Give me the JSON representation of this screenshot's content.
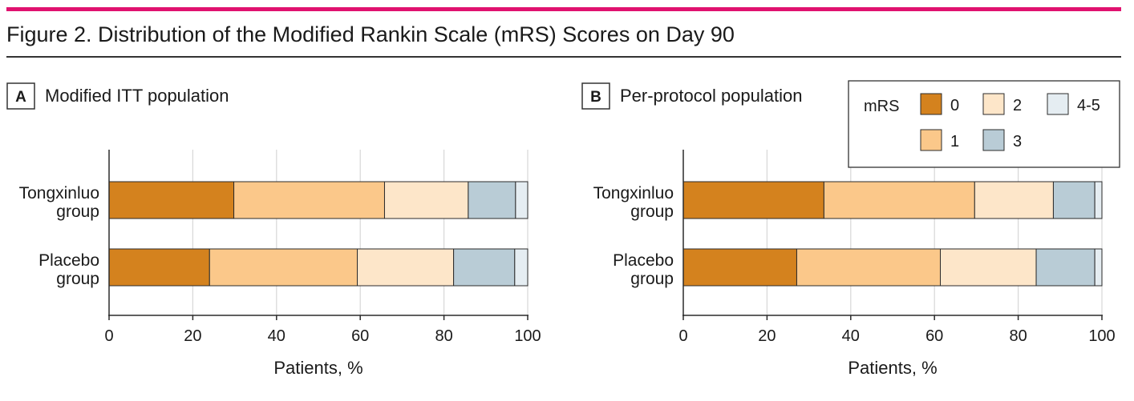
{
  "figure": {
    "title": "Figure 2. Distribution of the Modified Rankin Scale (mRS) Scores on Day 90",
    "accent_color": "#e0126f"
  },
  "legend": {
    "title": "mRS",
    "entries": [
      {
        "label": "0",
        "color": "#d4821e"
      },
      {
        "label": "1",
        "color": "#fbc88a"
      },
      {
        "label": "2",
        "color": "#fde6c9"
      },
      {
        "label": "3",
        "color": "#b9ccd6"
      },
      {
        "label": "4-5",
        "color": "#e5edf2"
      }
    ]
  },
  "chart_data": [
    {
      "type": "bar",
      "orientation": "horizontal",
      "stacked": true,
      "panel": "A",
      "title": "Modified ITT population",
      "categories": [
        [
          "Tongxinluo",
          "group"
        ],
        [
          "Placebo",
          "group"
        ]
      ],
      "series": [
        {
          "name": "0",
          "values": [
            29.8,
            24.0
          ]
        },
        {
          "name": "1",
          "values": [
            36.0,
            35.3
          ]
        },
        {
          "name": "2",
          "values": [
            20.0,
            23.0
          ]
        },
        {
          "name": "3",
          "values": [
            11.3,
            14.6
          ]
        },
        {
          "name": "4-5",
          "values": [
            2.9,
            3.1
          ]
        }
      ],
      "xlabel": "Patients, %",
      "ylabel": "",
      "xlim": [
        0,
        100
      ],
      "xticks": [
        0,
        20,
        40,
        60,
        80,
        100
      ]
    },
    {
      "type": "bar",
      "orientation": "horizontal",
      "stacked": true,
      "panel": "B",
      "title": "Per-protocol population",
      "categories": [
        [
          "Tongxinluo",
          "group"
        ],
        [
          "Placebo",
          "group"
        ]
      ],
      "series": [
        {
          "name": "0",
          "values": [
            33.6,
            27.1
          ]
        },
        {
          "name": "1",
          "values": [
            36.0,
            34.3
          ]
        },
        {
          "name": "2",
          "values": [
            18.8,
            22.9
          ]
        },
        {
          "name": "3",
          "values": [
            9.9,
            14.0
          ]
        },
        {
          "name": "4-5",
          "values": [
            1.7,
            1.7
          ]
        }
      ],
      "xlabel": "Patients, %",
      "ylabel": "",
      "xlim": [
        0,
        100
      ],
      "xticks": [
        0,
        20,
        40,
        60,
        80,
        100
      ]
    }
  ]
}
